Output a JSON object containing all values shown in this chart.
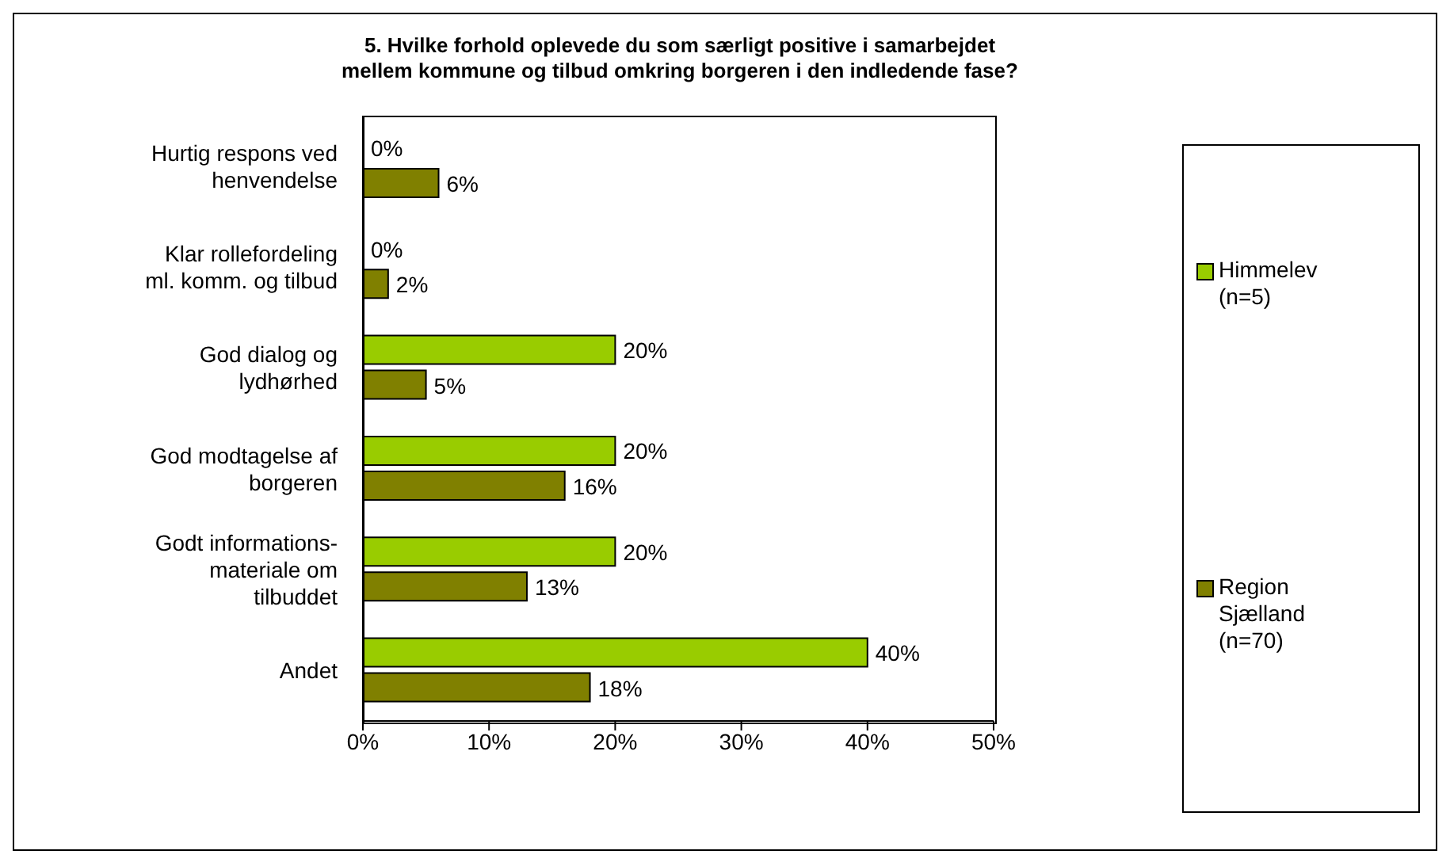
{
  "chart_data": {
    "type": "bar",
    "orientation": "horizontal",
    "title": "5. Hvilke forhold oplevede du som særligt positive i samarbejdet mellem kommune og tilbud omkring borgeren i den indledende fase?",
    "categories": [
      "Hurtig respons ved henvendelse",
      "Klar rollefordeling ml. komm. og tilbud",
      "God dialog og lydhørhed",
      "God modtagelse af borgeren",
      "Godt informations-materiale om tilbuddet",
      "Andet"
    ],
    "series": [
      {
        "name": "Himmelev (n=5)",
        "color": "#99cc00",
        "values": [
          0,
          0,
          20,
          20,
          20,
          40
        ],
        "value_labels": [
          "0%",
          "0%",
          "20%",
          "20%",
          "20%",
          "40%"
        ]
      },
      {
        "name": "Region Sjælland (n=70)",
        "color": "#808000",
        "values": [
          6,
          2,
          5,
          16,
          13,
          18
        ],
        "value_labels": [
          "6%",
          "2%",
          "5%",
          "16%",
          "13%",
          "18%"
        ]
      }
    ],
    "xlim": [
      0,
      50
    ],
    "xticks": [
      {
        "value": 0,
        "label": "0%"
      },
      {
        "value": 10,
        "label": "10%"
      },
      {
        "value": 20,
        "label": "20%"
      },
      {
        "value": 30,
        "label": "30%"
      },
      {
        "value": 40,
        "label": "40%"
      },
      {
        "value": 50,
        "label": "50%"
      }
    ],
    "grid": false,
    "legend": "right"
  }
}
